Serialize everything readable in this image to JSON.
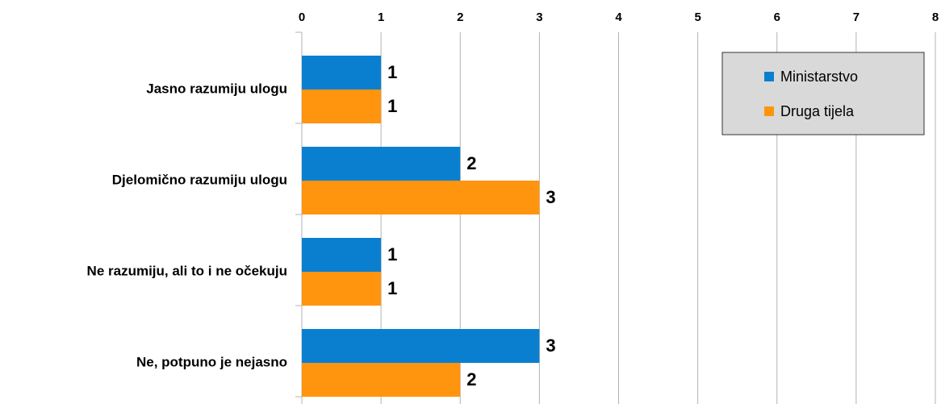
{
  "chart_data": {
    "type": "bar",
    "orientation": "horizontal",
    "categories": [
      "Jasno razumiju ulogu",
      "Djelomično razumiju ulogu",
      "Ne razumiju, ali to i ne očekuju",
      "Ne, potpuno je nejasno"
    ],
    "series": [
      {
        "name": "Ministarstvo",
        "color": "#0a7fd0",
        "values": [
          1,
          2,
          1,
          3
        ]
      },
      {
        "name": "Druga tijela",
        "color": "#ff950e",
        "values": [
          1,
          3,
          1,
          2
        ]
      }
    ],
    "xlim": [
      0,
      8
    ],
    "xticks": [
      0,
      1,
      2,
      3,
      4,
      5,
      6,
      7,
      8
    ],
    "grid": true,
    "legend": "top-right"
  }
}
